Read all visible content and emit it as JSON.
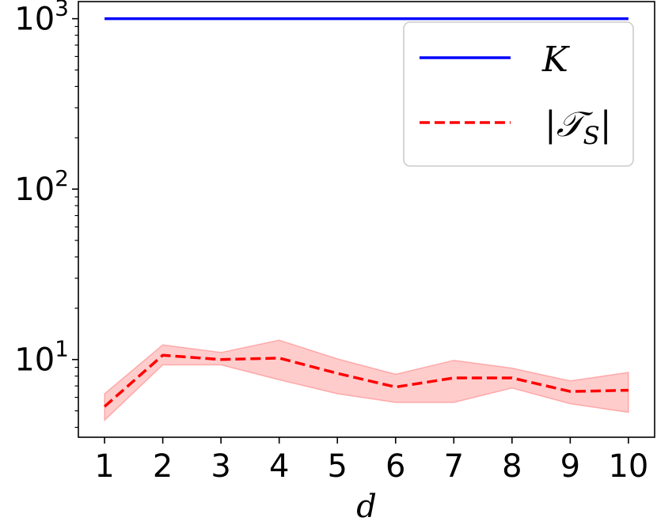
{
  "chart_data": {
    "type": "line",
    "title": "",
    "xlabel": "d",
    "ylabel": "",
    "yscale": "log",
    "x": [
      1,
      2,
      3,
      4,
      5,
      6,
      7,
      8,
      9,
      10
    ],
    "xlim": [
      0.55,
      10.45
    ],
    "ylim": [
      3.5,
      1260
    ],
    "x_ticks": [
      "1",
      "2",
      "3",
      "4",
      "5",
      "6",
      "7",
      "8",
      "9",
      "10"
    ],
    "y_ticks": [
      {
        "value": 10,
        "base": "10",
        "exp": "1"
      },
      {
        "value": 100,
        "base": "10",
        "exp": "2"
      },
      {
        "value": 1000,
        "base": "10",
        "exp": "3"
      }
    ],
    "grid": false,
    "legend": "top-right",
    "series": [
      {
        "name": "K",
        "color": "#0000ff",
        "style": "solid",
        "values": [
          1000,
          1000,
          1000,
          1000,
          1000,
          1000,
          1000,
          1000,
          1000,
          1000
        ]
      },
      {
        "name": "|T_S|",
        "color": "#ff0000",
        "style": "dashed",
        "values": [
          5.3,
          10.6,
          10.0,
          10.2,
          8.3,
          6.9,
          7.8,
          7.8,
          6.5,
          6.6
        ],
        "band_lower": [
          4.4,
          9.3,
          9.3,
          7.6,
          6.3,
          5.6,
          5.6,
          6.8,
          5.5,
          4.9
        ],
        "band_upper": [
          6.3,
          12.2,
          11.0,
          13.0,
          10.1,
          8.2,
          9.9,
          8.9,
          7.5,
          8.4
        ],
        "band_color": "#ff0000"
      }
    ]
  }
}
